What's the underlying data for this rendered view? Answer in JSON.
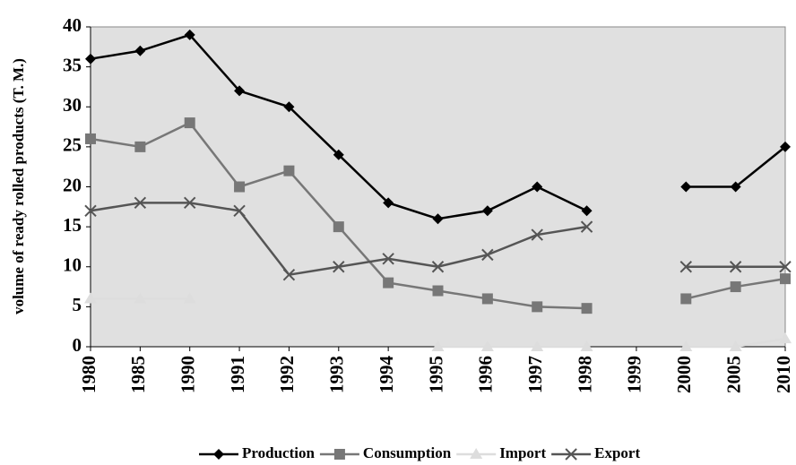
{
  "chart_data": {
    "type": "line",
    "y_label": "volume of ready  rolled products (T. M.)",
    "categories": [
      "1980",
      "1985",
      "1990",
      "1991",
      "1992",
      "1993",
      "1994",
      "1995",
      "1996",
      "1997",
      "1998",
      "1999",
      "2000",
      "2005",
      "2010"
    ],
    "series": [
      {
        "name": "Production",
        "color": "#000000",
        "marker": "diamond",
        "values": [
          36,
          37,
          39,
          32,
          30,
          24,
          18,
          16,
          17,
          20,
          17,
          null,
          20,
          20,
          25
        ]
      },
      {
        "name": "Consumption",
        "color": "#777777",
        "marker": "square",
        "values": [
          26,
          25,
          28,
          20,
          22,
          15,
          8,
          7,
          6,
          5,
          4.8,
          null,
          6,
          7.5,
          8.5
        ]
      },
      {
        "name": "Import",
        "color": "#dddddd",
        "marker": "triangle",
        "values": [
          6,
          6,
          6,
          null,
          null,
          null,
          null,
          0,
          0,
          0,
          0,
          null,
          0,
          0,
          1
        ]
      },
      {
        "name": "Export",
        "color": "#555555",
        "marker": "x",
        "values": [
          17,
          18,
          18,
          17,
          9,
          10,
          11,
          10,
          11.5,
          14,
          15,
          null,
          10,
          10,
          10
        ]
      }
    ],
    "ylim": [
      0,
      40
    ],
    "yticks": [
      0,
      5,
      10,
      15,
      20,
      25,
      30,
      35,
      40
    ],
    "grid": false,
    "legend": "bottom"
  }
}
